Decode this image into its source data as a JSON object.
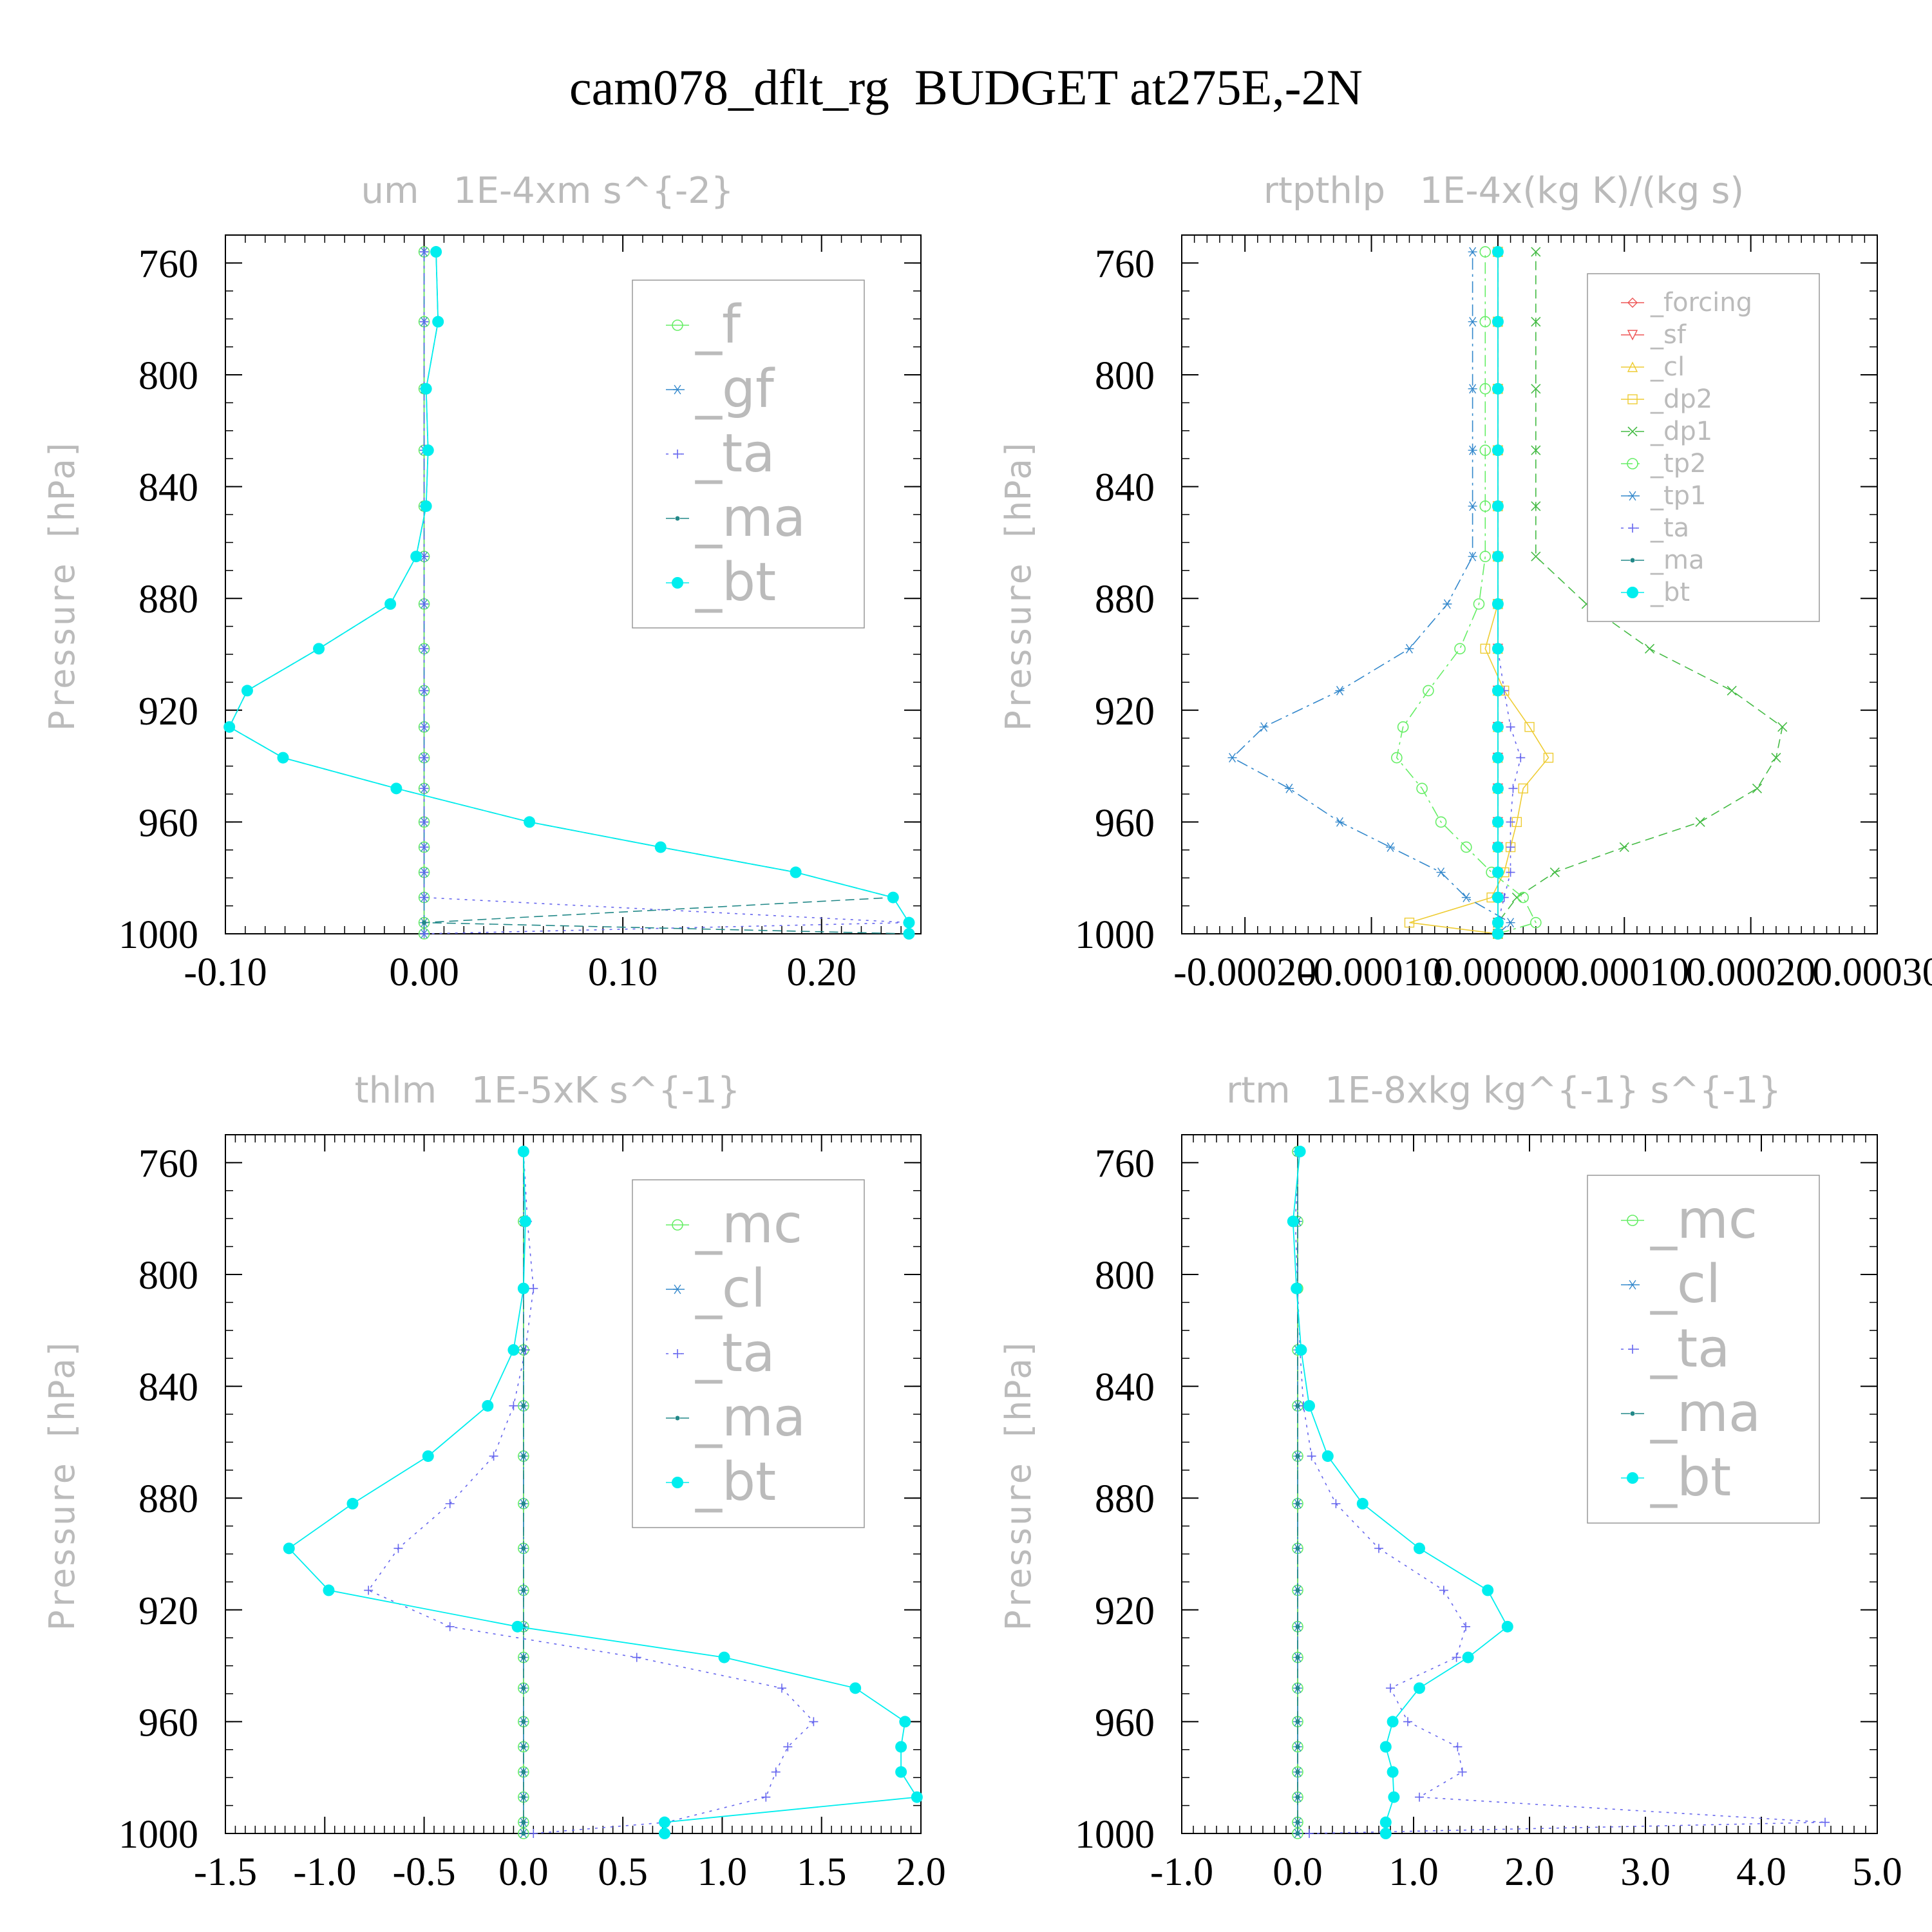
{
  "title": "cam078_dflt_rg  BUDGET at275E,-2N",
  "colors": {
    "green": "#66ee66",
    "blue": "#3388cc",
    "purple": "#6666ee",
    "teal": "#228888",
    "cyan": "#00eeee",
    "red": "#ee5555",
    "yellow": "#eecc33",
    "darkgreen": "#44bb44",
    "gray_text": "#bbbbbb"
  },
  "chart_data": [
    {
      "type": "line",
      "title": "um   1E-4xm s^{-2}",
      "ylabel": "Pressure [hPa]",
      "xlabel": "",
      "xlim": [
        -0.1,
        0.25
      ],
      "ylim": [
        1000,
        750
      ],
      "xticks": [
        -0.1,
        0.0,
        0.1,
        0.2
      ],
      "xtick_labels": [
        "-0.10",
        "0.00",
        "0.10",
        "0.20"
      ],
      "yticks": [
        760,
        800,
        840,
        880,
        920,
        960,
        1000
      ],
      "ytick_labels": [
        "760",
        "800",
        "840",
        "880",
        "920",
        "960",
        "1000"
      ],
      "legend": "top-right",
      "pressure": [
        1000,
        996,
        987,
        978,
        969,
        960,
        948,
        937,
        926,
        913,
        898,
        882,
        865,
        847,
        827,
        805,
        781,
        756
      ],
      "series": [
        {
          "name": "_f",
          "color": "green",
          "marker": "circle",
          "dash": "solid",
          "values": [
            0,
            0,
            0,
            0,
            0,
            0,
            0,
            0,
            0,
            0,
            0,
            0,
            0,
            0,
            0,
            0,
            0,
            0
          ]
        },
        {
          "name": "_gf",
          "color": "blue",
          "marker": "asterisk",
          "dash": "dashdot",
          "values": [
            0,
            0,
            0,
            0,
            0,
            0,
            0,
            0,
            0,
            0,
            0,
            0,
            0,
            0,
            0,
            0,
            0,
            0
          ]
        },
        {
          "name": "_ta",
          "color": "purple",
          "marker": "plus",
          "dash": "dotted",
          "values": [
            0,
            0.244,
            0,
            0,
            0,
            0,
            0,
            0,
            0,
            0,
            0,
            0,
            0,
            0,
            0,
            0,
            0,
            0
          ]
        },
        {
          "name": "_ma",
          "color": "teal",
          "marker": "dot",
          "dash": "dashed",
          "values": [
            0.244,
            0,
            0.236,
            0.187,
            0.119,
            0.053,
            -0.014,
            -0.071,
            -0.098,
            -0.089,
            -0.053,
            -0.017,
            -0.004,
            0.001,
            0.002,
            0.001,
            0.007,
            0.006
          ]
        },
        {
          "name": "_bt",
          "color": "cyan",
          "marker": "bigdot",
          "dash": "solid",
          "values": [
            0.244,
            0.244,
            0.236,
            0.187,
            0.119,
            0.053,
            -0.014,
            -0.071,
            -0.098,
            -0.089,
            -0.053,
            -0.017,
            -0.004,
            0.001,
            0.002,
            0.001,
            0.007,
            0.006
          ]
        }
      ]
    },
    {
      "type": "line",
      "title": "rtpthlp   1E-4x(kg K)/(kg s)",
      "ylabel": "Pressure [hPa]",
      "xlabel": "",
      "xlim": [
        -0.00025,
        0.0003
      ],
      "ylim": [
        1000,
        750
      ],
      "xticks": [
        -0.0002,
        -0.0001,
        0.0,
        0.0001,
        0.0002,
        0.0003
      ],
      "xtick_labels": [
        "-0.00020",
        "-0.00010",
        "0.00000",
        "0.00010",
        "0.00020",
        "0.00030"
      ],
      "yticks": [
        760,
        800,
        840,
        880,
        920,
        960,
        1000
      ],
      "ytick_labels": [
        "760",
        "800",
        "840",
        "880",
        "920",
        "960",
        "1000"
      ],
      "legend": "top-right",
      "pressure": [
        1000,
        996,
        987,
        978,
        969,
        960,
        948,
        937,
        926,
        913,
        898,
        882,
        865,
        847,
        827,
        805,
        781,
        756
      ],
      "series": [
        {
          "name": "_forcing",
          "color": "red",
          "marker": "diamond",
          "dash": "solid",
          "values": [
            0,
            0,
            0,
            0,
            0,
            0,
            0,
            0,
            0,
            0,
            0,
            0,
            0,
            0,
            0,
            0,
            0,
            0
          ]
        },
        {
          "name": "_sf",
          "color": "red",
          "marker": "triangle-down",
          "dash": "dashed",
          "values": [
            0,
            0,
            0,
            0,
            0,
            0,
            0,
            0,
            0,
            0,
            0,
            0,
            0,
            0,
            0,
            0,
            0,
            0
          ]
        },
        {
          "name": "_cl",
          "color": "yellow",
          "marker": "triangle-up",
          "dash": "solid",
          "values": [
            0,
            0,
            0,
            0,
            0,
            0,
            0,
            0,
            0,
            0,
            0,
            0,
            0,
            0,
            0,
            0,
            0,
            0
          ]
        },
        {
          "name": "_dp2",
          "color": "yellow",
          "marker": "square",
          "dash": "solid",
          "values": [
            0,
            -7e-05,
            -5e-06,
            5e-06,
            1e-05,
            1.5e-05,
            2e-05,
            4e-05,
            2.5e-05,
            5e-06,
            -1e-05,
            0,
            0,
            0,
            0,
            0,
            0,
            0
          ]
        },
        {
          "name": "_dp1",
          "color": "darkgreen",
          "marker": "cross",
          "dash": "dashed",
          "values": [
            0,
            0,
            1.5e-05,
            4.5e-05,
            0.0001,
            0.00016,
            0.000205,
            0.00022,
            0.000225,
            0.000185,
            0.00012,
            7e-05,
            3e-05,
            3e-05,
            3e-05,
            3e-05,
            3e-05,
            3e-05
          ]
        },
        {
          "name": "_tp2",
          "color": "green",
          "marker": "circle",
          "dash": "dashdot",
          "values": [
            0,
            3e-05,
            2e-05,
            -5e-06,
            -2.5e-05,
            -4.5e-05,
            -6e-05,
            -8e-05,
            -7.5e-05,
            -5.5e-05,
            -3e-05,
            -1.5e-05,
            -1e-05,
            -1e-05,
            -1e-05,
            -1e-05,
            -1e-05,
            -1e-05
          ]
        },
        {
          "name": "_tp1",
          "color": "blue",
          "marker": "asterisk",
          "dash": "dashdot",
          "values": [
            0,
            1e-05,
            -2.5e-05,
            -4.5e-05,
            -8.5e-05,
            -0.000125,
            -0.000165,
            -0.00021,
            -0.000185,
            -0.000125,
            -7e-05,
            -4e-05,
            -2e-05,
            -2e-05,
            -2e-05,
            -2e-05,
            -2e-05,
            -2e-05
          ]
        },
        {
          "name": "_ta",
          "color": "purple",
          "marker": "plus",
          "dash": "dotted",
          "values": [
            0,
            0,
            5e-06,
            1e-05,
            1e-05,
            1e-05,
            1.2e-05,
            1.8e-05,
            1e-05,
            5e-06,
            0,
            0,
            0,
            0,
            0,
            0,
            0,
            0
          ]
        },
        {
          "name": "_ma",
          "color": "teal",
          "marker": "dot",
          "dash": "dashed",
          "values": [
            0,
            0,
            0,
            0,
            0,
            0,
            0,
            0,
            0,
            0,
            0,
            0,
            0,
            0,
            0,
            0,
            0,
            0
          ]
        },
        {
          "name": "_bt",
          "color": "cyan",
          "marker": "bigdot",
          "dash": "solid",
          "values": [
            0,
            0,
            0,
            0,
            0,
            0,
            0,
            0,
            0,
            0,
            0,
            0,
            0,
            0,
            0,
            0,
            0,
            0
          ]
        }
      ]
    },
    {
      "type": "line",
      "title": "thlm   1E-5xK s^{-1}",
      "ylabel": "Pressure [hPa]",
      "xlabel": "",
      "xlim": [
        -1.5,
        2.0
      ],
      "ylim": [
        1000,
        750
      ],
      "xticks": [
        -1.5,
        -1.0,
        -0.5,
        0.0,
        0.5,
        1.0,
        1.5,
        2.0
      ],
      "xtick_labels": [
        "-1.5",
        "-1.0",
        "-0.5",
        "0.0",
        "0.5",
        "1.0",
        "1.5",
        "2.0"
      ],
      "yticks": [
        760,
        800,
        840,
        880,
        920,
        960,
        1000
      ],
      "ytick_labels": [
        "760",
        "800",
        "840",
        "880",
        "920",
        "960",
        "1000"
      ],
      "legend": "top-right",
      "pressure": [
        1000,
        996,
        987,
        978,
        969,
        960,
        948,
        937,
        926,
        913,
        898,
        882,
        865,
        847,
        827,
        805,
        781,
        756
      ],
      "series": [
        {
          "name": "_mc",
          "color": "green",
          "marker": "circle",
          "dash": "solid",
          "values": [
            0,
            0,
            0,
            0,
            0,
            0,
            0,
            0,
            0,
            0,
            0,
            0,
            0,
            0,
            0,
            0,
            0,
            0
          ]
        },
        {
          "name": "_cl",
          "color": "blue",
          "marker": "asterisk",
          "dash": "dashdot",
          "values": [
            0,
            0,
            0,
            0,
            0,
            0,
            0,
            0,
            0,
            0,
            0,
            0,
            0,
            0,
            0,
            0,
            0,
            0
          ]
        },
        {
          "name": "_ta",
          "color": "purple",
          "marker": "plus",
          "dash": "dotted",
          "values": [
            0.05,
            0.72,
            1.22,
            1.27,
            1.33,
            1.46,
            1.3,
            0.57,
            -0.37,
            -0.78,
            -0.63,
            -0.37,
            -0.15,
            -0.05,
            0.01,
            0.05,
            0.02,
            0.0
          ]
        },
        {
          "name": "_ma",
          "color": "teal",
          "marker": "dot",
          "dash": "dashed",
          "values": [
            0,
            0,
            0,
            0,
            0,
            0,
            0,
            0,
            0,
            0,
            0,
            0,
            0,
            0,
            0,
            0,
            0,
            0
          ]
        },
        {
          "name": "_bt",
          "color": "cyan",
          "marker": "bigdot",
          "dash": "solid",
          "values": [
            0.71,
            0.71,
            1.98,
            1.9,
            1.9,
            1.92,
            1.67,
            1.01,
            -0.03,
            -0.98,
            -1.18,
            -0.86,
            -0.48,
            -0.18,
            -0.05,
            0.0,
            0.01,
            0.0
          ]
        }
      ]
    },
    {
      "type": "line",
      "title": "rtm   1E-8xkg kg^{-1} s^{-1}",
      "ylabel": "Pressure [hPa]",
      "xlabel": "",
      "xlim": [
        -1.0,
        5.0
      ],
      "ylim": [
        1000,
        750
      ],
      "xticks": [
        -1.0,
        0.0,
        1.0,
        2.0,
        3.0,
        4.0,
        5.0
      ],
      "xtick_labels": [
        "-1.0",
        "0.0",
        "1.0",
        "2.0",
        "3.0",
        "4.0",
        "5.0"
      ],
      "yticks": [
        760,
        800,
        840,
        880,
        920,
        960,
        1000
      ],
      "ytick_labels": [
        "760",
        "800",
        "840",
        "880",
        "920",
        "960",
        "1000"
      ],
      "legend": "top-right",
      "pressure": [
        1000,
        996,
        987,
        978,
        969,
        960,
        948,
        937,
        926,
        913,
        898,
        882,
        865,
        847,
        827,
        805,
        781,
        756
      ],
      "series": [
        {
          "name": "_mc",
          "color": "green",
          "marker": "circle",
          "dash": "solid",
          "values": [
            0,
            0,
            0,
            0,
            0,
            0,
            0,
            0,
            0,
            0,
            0,
            0,
            0,
            0,
            0,
            0,
            0,
            0
          ]
        },
        {
          "name": "_cl",
          "color": "blue",
          "marker": "asterisk",
          "dash": "dashdot",
          "values": [
            0,
            0,
            0,
            0,
            0,
            0,
            0,
            0,
            0,
            0,
            0,
            0,
            0,
            0,
            0,
            0,
            0,
            0
          ]
        },
        {
          "name": "_ta",
          "color": "purple",
          "marker": "plus",
          "dash": "dotted",
          "values": [
            0.1,
            4.55,
            1.05,
            1.42,
            1.38,
            0.95,
            0.8,
            1.37,
            1.45,
            1.26,
            0.7,
            0.33,
            0.12,
            0.05,
            0.02,
            0.0,
            -0.02,
            0.01
          ]
        },
        {
          "name": "_ma",
          "color": "teal",
          "marker": "dot",
          "dash": "dashed",
          "values": [
            0,
            0,
            0,
            0,
            0,
            0,
            0,
            0,
            0,
            0,
            0,
            0,
            0,
            0,
            0,
            0,
            0,
            0
          ]
        },
        {
          "name": "_bt",
          "color": "cyan",
          "marker": "bigdot",
          "dash": "solid",
          "values": [
            0.76,
            0.76,
            0.83,
            0.82,
            0.76,
            0.82,
            1.05,
            1.47,
            1.81,
            1.64,
            1.05,
            0.56,
            0.26,
            0.1,
            0.03,
            -0.01,
            -0.04,
            0.02
          ]
        }
      ]
    }
  ]
}
